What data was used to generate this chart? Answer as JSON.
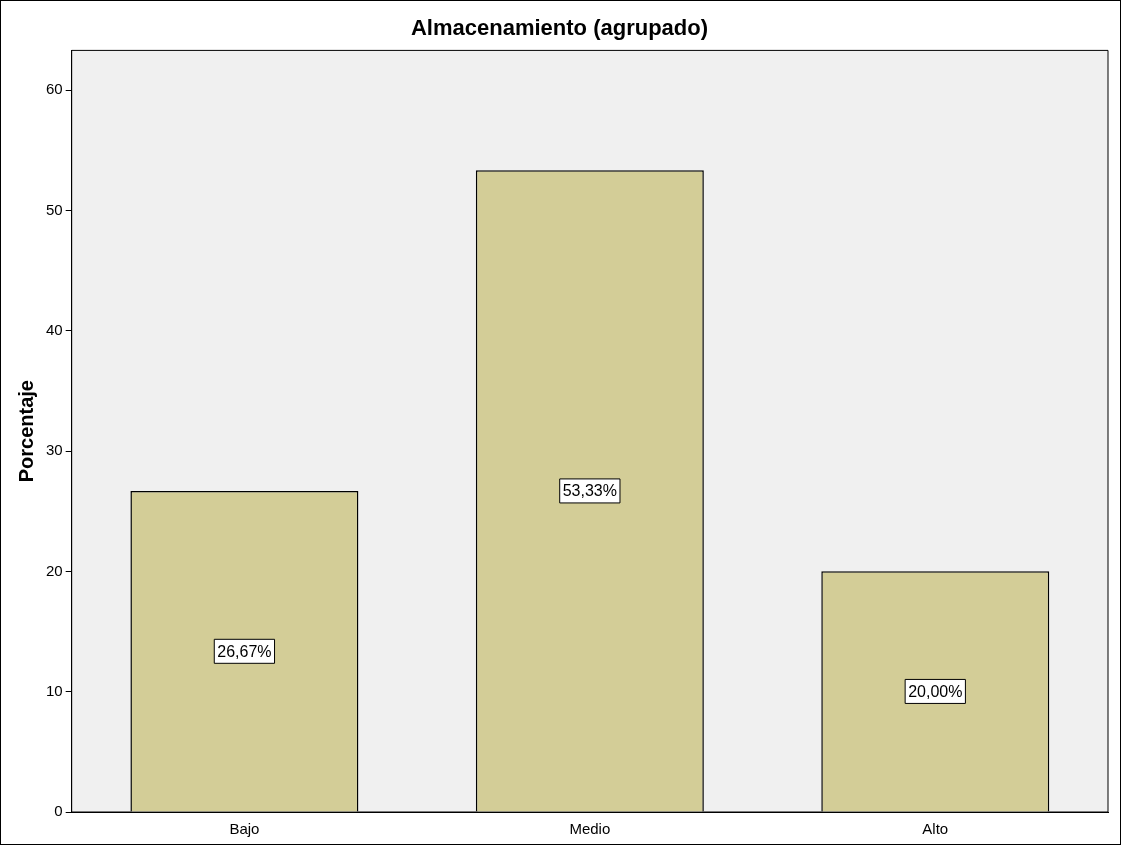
{
  "chart_data": {
    "type": "bar",
    "title": "Almacenamiento (agrupado)",
    "ylabel": "Porcentaje",
    "categories": [
      "Bajo",
      "Medio",
      "Alto"
    ],
    "values": [
      26.67,
      53.33,
      20.0
    ],
    "value_labels": [
      "26,67%",
      "53,33%",
      "20,00%"
    ],
    "color": "#d3cd97",
    "ylim": [
      0,
      63.3
    ],
    "yticks": [
      0,
      10,
      20,
      30,
      40,
      50,
      60
    ],
    "grid": false,
    "legend": false
  }
}
